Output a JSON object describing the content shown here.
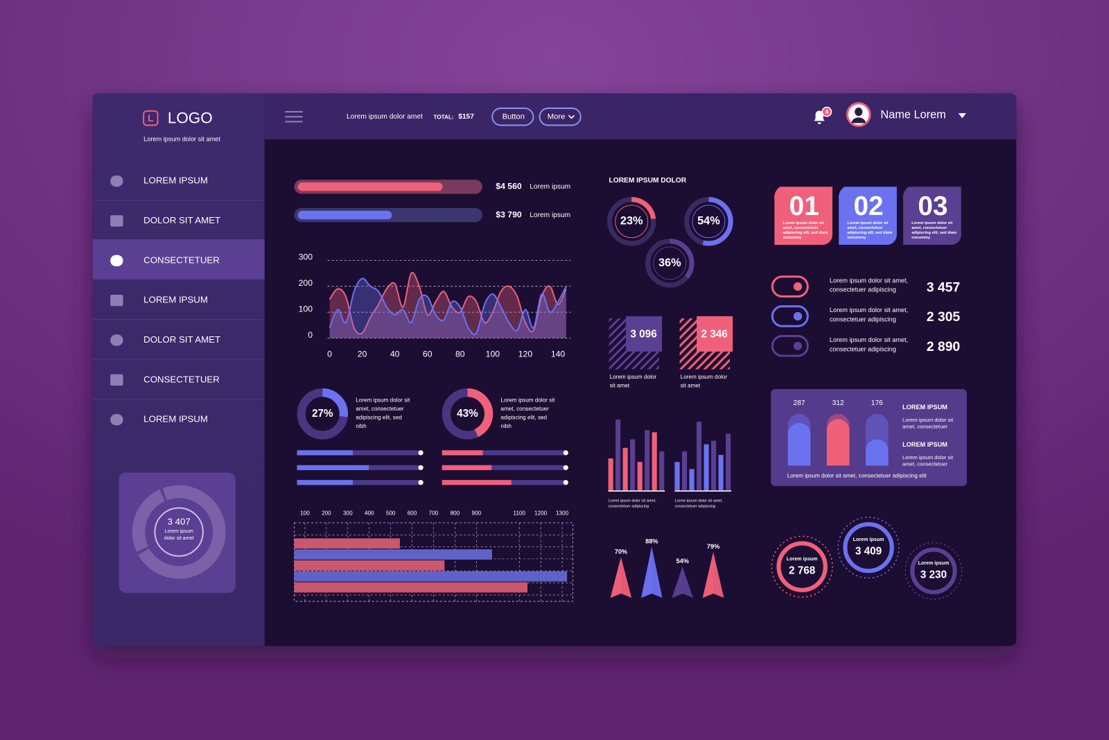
{
  "logo": {
    "letter": "L",
    "name": "LOGO",
    "tagline": "Lorem ipsum dolor sit amet"
  },
  "nav": {
    "items": [
      "LOREM IPSUM",
      "DOLOR SIT AMET",
      "CONSECTETUER",
      "LOREM IPSUM",
      "DOLOR SIT AMET",
      "CONSECTETUER",
      "LOREM IPSUM"
    ],
    "active": 2
  },
  "sidebar_widget": {
    "value": "3 407",
    "label": [
      "Lorem ipsum",
      "dolor sit amet"
    ]
  },
  "header": {
    "text": "Lorem ipsum dolor amet",
    "total_label": "TOTAL:",
    "total_value": "$157",
    "button": "Button",
    "more": "More",
    "notifications": 4,
    "user": "Name Lorem"
  },
  "progress_bars": [
    {
      "amount": "$4 560",
      "label": "Lorem ipsum",
      "fill": 80,
      "color": "#f0607a",
      "track": "#7a3a5c"
    },
    {
      "amount": "$3 790",
      "label": "Lorem ipsum",
      "fill": 52,
      "color": "#6a72f0",
      "track": "#3b3670"
    }
  ],
  "line_chart": {
    "type": "area",
    "x": [
      0,
      5,
      10,
      15,
      20,
      25,
      30,
      35,
      40,
      45,
      50,
      55,
      60,
      65,
      70,
      75,
      80,
      85,
      90,
      95,
      100,
      105,
      110,
      115,
      120,
      125,
      130,
      135,
      140,
      145
    ],
    "series": [
      {
        "color": "#e8607a",
        "values": [
          150,
          190,
          160,
          40,
          20,
          80,
          130,
          190,
          210,
          120,
          250,
          200,
          90,
          140,
          180,
          120,
          100,
          160,
          140,
          60,
          100,
          180,
          200,
          160,
          60,
          30,
          160,
          200,
          130,
          190
        ]
      },
      {
        "color": "#6a72f0",
        "values": [
          40,
          110,
          60,
          180,
          230,
          200,
          180,
          120,
          90,
          110,
          60,
          150,
          160,
          90,
          70,
          140,
          120,
          40,
          20,
          130,
          170,
          120,
          60,
          30,
          110,
          40,
          170,
          100,
          140,
          200
        ]
      }
    ],
    "xlim": [
      0,
      148
    ],
    "ylim": [
      0,
      300
    ],
    "xticks": [
      0,
      20,
      40,
      60,
      80,
      100,
      120,
      140
    ],
    "yticks": [
      0,
      100,
      200,
      300
    ],
    "grid": true
  },
  "donut_cards": [
    {
      "value": 27,
      "value_label": "27%",
      "color": "#6a72f0",
      "text": [
        "Lorem ipsum dolor sit",
        "amet, consectetuer",
        "adipiscing elit, sed",
        "nibh"
      ],
      "sliders": [
        45,
        58,
        45
      ]
    },
    {
      "value": 43,
      "value_label": "43%",
      "color": "#f0607a",
      "text": [
        "Lorem ipsum dolor sit",
        "amet, consectetuer",
        "adipiscing elit, sed",
        "nibh"
      ],
      "sliders": [
        33,
        40,
        56
      ]
    }
  ],
  "hbar_chart": {
    "type": "hbar",
    "values": [
      543,
      973,
      751,
      1323,
      1138
    ],
    "colors": [
      "#c9586f",
      "#5e63c8",
      "#c9586f",
      "#5e63c8",
      "#c9586f"
    ],
    "xlim": [
      50,
      1350
    ],
    "xticks": [
      100,
      200,
      300,
      400,
      500,
      600,
      700,
      800,
      900,
      1100,
      1200,
      1300
    ],
    "grid": true
  },
  "section_title": "LOREM IPSUM DOLOR",
  "gauges": {
    "values": [
      23,
      54,
      36
    ],
    "value_labels": [
      "23%",
      "54%",
      "36%"
    ],
    "colors": [
      "#f0607a",
      "#6a72f0",
      "#5a3f92"
    ]
  },
  "stat_squares": [
    {
      "value": "3 096",
      "label": [
        "Lorem ipsum dolor",
        "sit amet"
      ],
      "color": "#5a3f92"
    },
    {
      "value": "2 346",
      "label": [
        "Lorem ipsum dolor",
        "sit amet"
      ],
      "color": "#f0607a"
    }
  ],
  "column_charts": [
    {
      "type": "bar",
      "values": [
        45,
        100,
        60,
        72,
        40,
        85,
        82,
        55
      ],
      "colors": [
        "#f0607a",
        "#5a3f92"
      ],
      "caption": [
        "Lorem ipsum dolor sit amet,",
        "consectetuer adipiscing"
      ]
    },
    {
      "type": "bar",
      "values": [
        40,
        55,
        30,
        97,
        65,
        70,
        50,
        80
      ],
      "colors": [
        "#6a72f0",
        "#5a3f92"
      ],
      "caption": [
        "Lorem ipsum dolor sit amet,",
        "consectetuer adipiscing"
      ]
    }
  ],
  "pyramids": {
    "type": "pyramid",
    "values": [
      70,
      88,
      54,
      79
    ],
    "value_labels": [
      "70%",
      "88%",
      "54%",
      "79%"
    ],
    "colors": [
      "#f0607a",
      "#6a72f0",
      "#5a3f92",
      "#f0607a"
    ]
  },
  "numbered_cards": [
    {
      "number": "01",
      "text": [
        "Lorem ipsum dolor sit",
        "amet, consectetuer",
        "adipiscing elit, sed diam",
        "nonummy"
      ],
      "color": "#f0607a"
    },
    {
      "number": "02",
      "text": [
        "Lorem ipsum dolor sit",
        "amet, consectetuer",
        "adipiscing elit, sed diam",
        "nonummy"
      ],
      "color": "#6a72f0"
    },
    {
      "number": "03",
      "text": [
        "Lorem ipsum dolor sit",
        "amet, consectetuer",
        "adipiscing elit, sed diam",
        "nonummy"
      ],
      "color": "#5a3f92"
    }
  ],
  "toggles": [
    {
      "text": [
        "Lorem ipsum dolor sit amet,",
        "consectetuer adipiscing"
      ],
      "value": "3 457",
      "color": "#f0607a"
    },
    {
      "text": [
        "Lorem ipsum dolor sit amet,",
        "consectetuer adipiscing"
      ],
      "value": "2 305",
      "color": "#6a72f0"
    },
    {
      "text": [
        "Lorem ipsum dolor sit amet,",
        "consectetuer adipiscing"
      ],
      "value": "2 890",
      "color": "#5a3f92"
    }
  ],
  "capsule_panel": {
    "values": [
      287,
      312,
      176
    ],
    "colors": [
      "#6a72f0",
      "#f0607a",
      "#6a72f0"
    ],
    "sections": [
      {
        "heading": "LOREM IPSUM",
        "text": [
          "Lorem ipsum dolor sit",
          "amet, consectetuer"
        ]
      },
      {
        "heading": "LOREM IPSUM",
        "text": [
          "Lorem ipsum dolor sit",
          "amet, consectetuer"
        ]
      }
    ],
    "footer": "Lorem ipsum dolor sit amet, consectetuer adipiscing elit"
  },
  "ring_stats": [
    {
      "label": "Lorem ipsum",
      "value": "2 768",
      "color": "#f0607a"
    },
    {
      "label": "Lorem ipsum",
      "value": "3 409",
      "color": "#6a72f0"
    },
    {
      "label": "Lorem ipsum",
      "value": "3 230",
      "color": "#5a3f92"
    }
  ]
}
